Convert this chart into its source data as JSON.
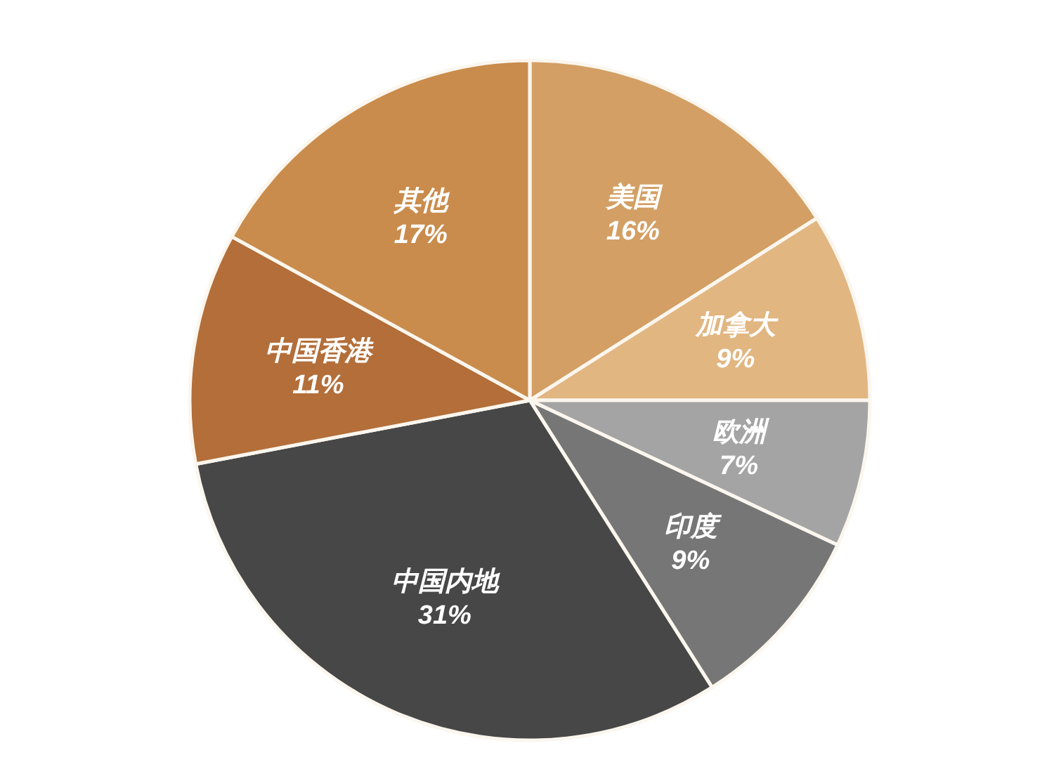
{
  "chart_data": {
    "type": "pie",
    "categories": [
      "美国",
      "加拿大",
      "欧洲",
      "印度",
      "中国内地",
      "中国香港",
      "其他"
    ],
    "values": [
      16,
      9,
      7,
      9,
      31,
      11,
      17
    ],
    "value_labels": [
      "16%",
      "9%",
      "7%",
      "9%",
      "31%",
      "11%",
      "17%"
    ],
    "colors": [
      "#d39f64",
      "#e1b681",
      "#a4a4a4",
      "#767676",
      "#474747",
      "#b36e39",
      "#c98c4c"
    ]
  }
}
